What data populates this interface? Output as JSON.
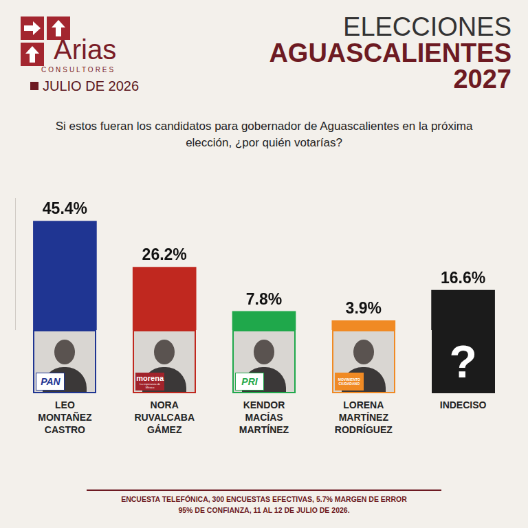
{
  "header": {
    "brand": "Arias",
    "brand_sub": "CONSULTORES",
    "date": "JULIO DE 2026",
    "title_lines": [
      "ELECCIONES",
      "AGUASCALIENTES",
      "2027"
    ],
    "question": "Si estos fueran los candidatos para gobernador de Aguascalientes en la próxima elección, ¿por quién votarías?"
  },
  "chart_data": {
    "type": "bar",
    "categories": [
      "LEO MONTAÑEZ CASTRO",
      "NORA RUVALCABA GÁMEZ",
      "KENDOR MACÍAS MARTÍNEZ",
      "LORENA MARTÍNEZ RODRÍGUEZ",
      "INDECISO"
    ],
    "values": [
      45.4,
      26.2,
      7.8,
      3.9,
      16.6
    ],
    "value_labels": [
      "45.4%",
      "26.2%",
      "7.8%",
      "3.9%",
      "16.6%"
    ],
    "colors": [
      "#1f3592",
      "#c0281f",
      "#1fa84b",
      "#f08a24",
      "#1b1b1b"
    ],
    "parties": [
      "PAN",
      "morena",
      "PRI",
      "MOVIMIENTO CIUDADANO",
      null
    ],
    "party_taglines": [
      null,
      "La esperanza de México",
      null,
      null,
      null
    ],
    "ylim": [
      0,
      55
    ],
    "grid": false,
    "data_labels": true,
    "tick_labels": false
  },
  "undecided_mark": "?",
  "footer": {
    "lines": [
      "ENCUESTA TELEFÓNICA, 300 ENCUESTAS EFECTIVAS, 5.7%  MARGEN DE ERROR",
      "95% DE CONFIANZA, 11 AL 12 DE JULIO DE 2026."
    ]
  }
}
